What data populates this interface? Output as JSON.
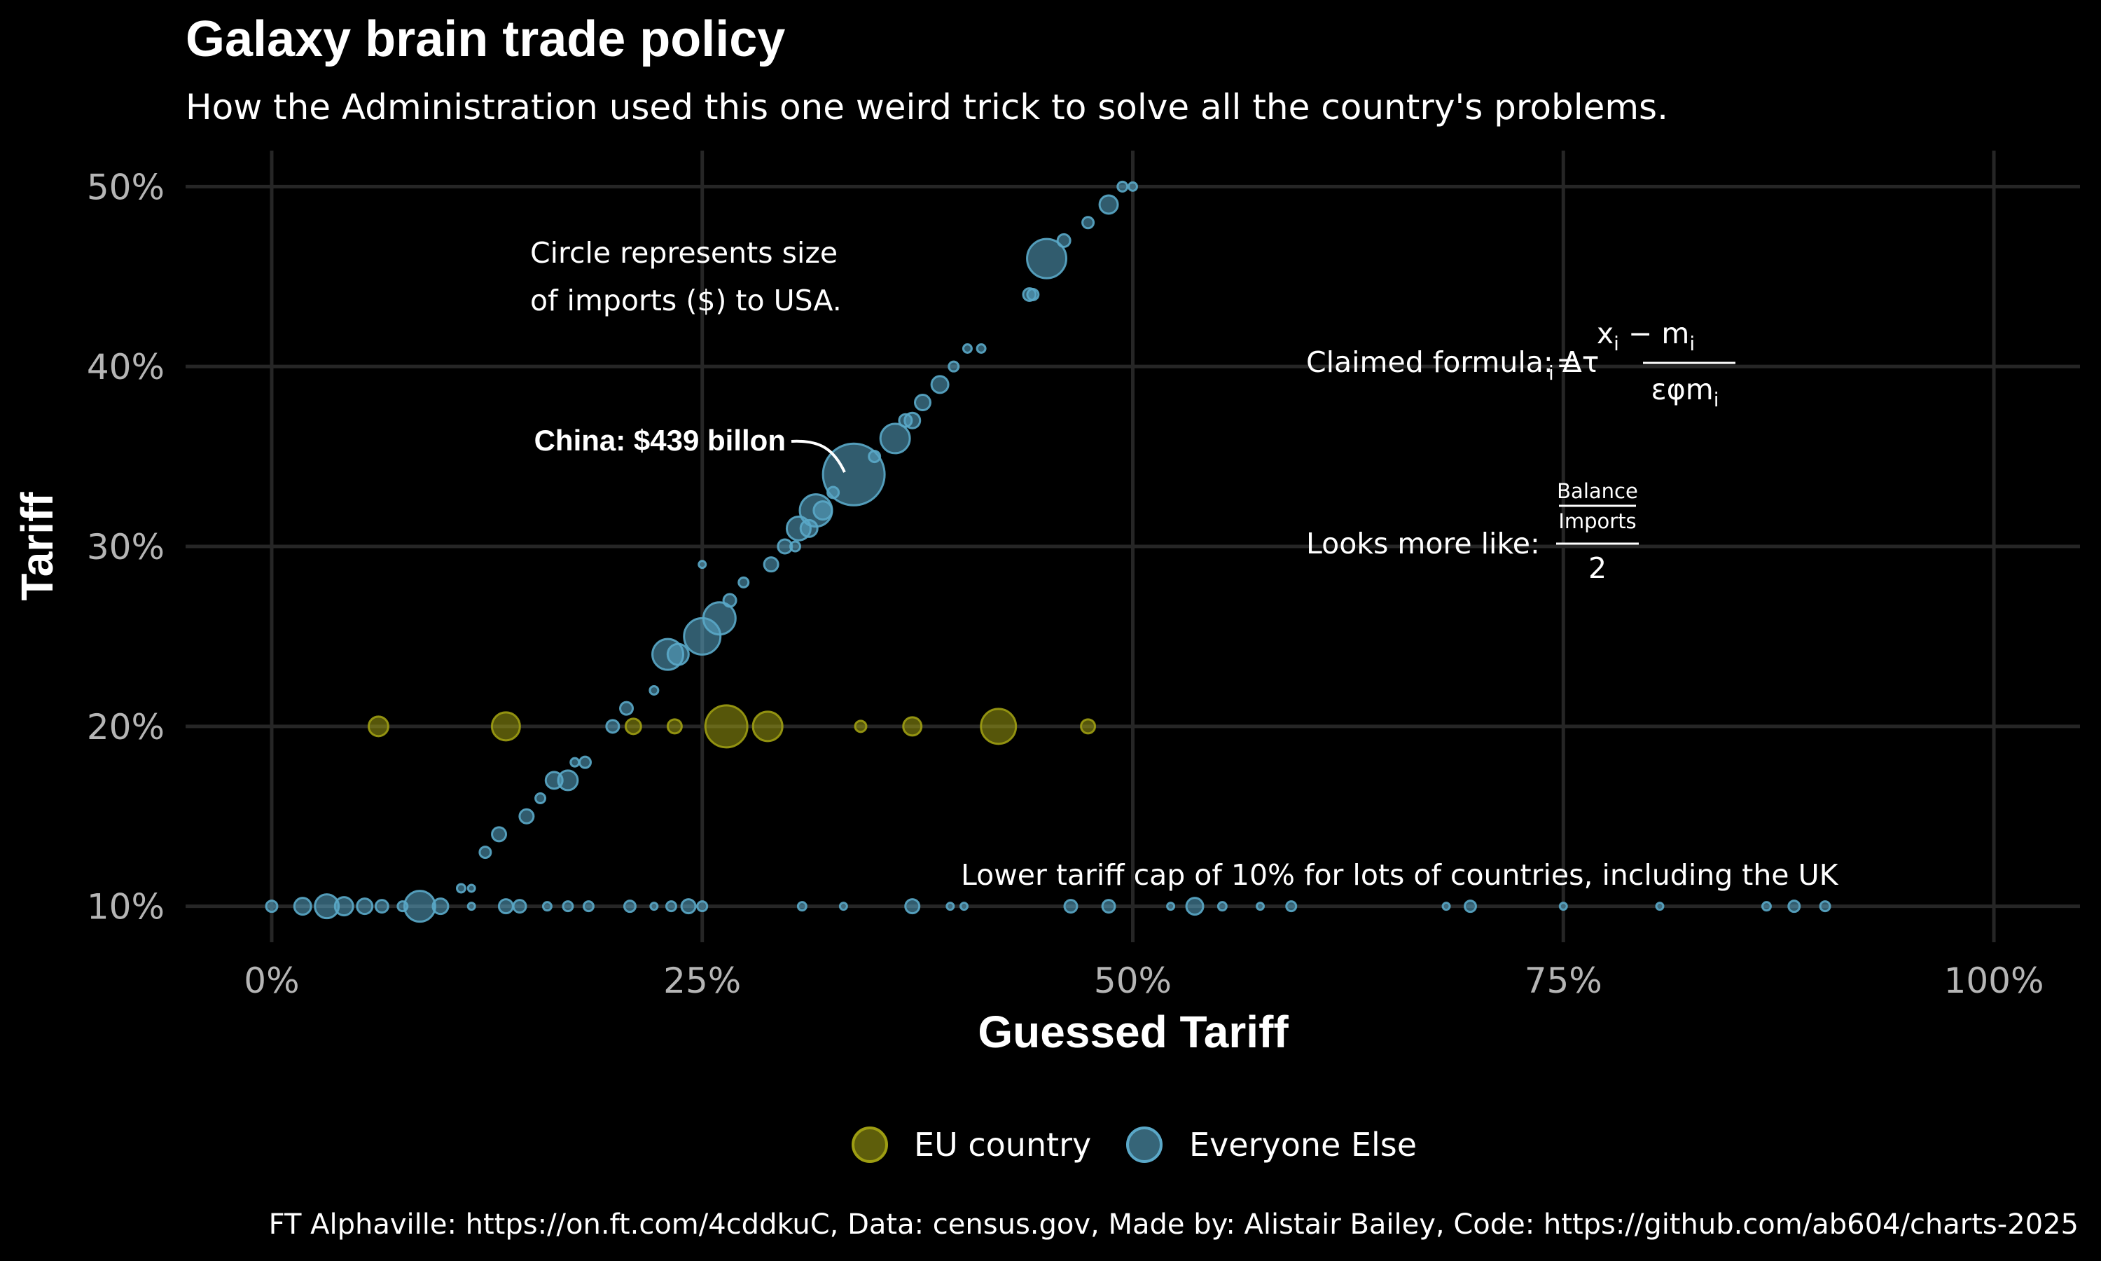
{
  "chart_data": {
    "type": "scatter",
    "title": "Galaxy brain trade policy",
    "subtitle": "How the Administration used this one weird trick to solve all the country's problems.",
    "xlabel": "Guessed Tariff",
    "ylabel": "Tariff",
    "xlim": [
      -5,
      105
    ],
    "ylim": [
      8,
      52
    ],
    "x_ticks": [
      0,
      25,
      50,
      75,
      100
    ],
    "x_tick_labels": [
      "0%",
      "25%",
      "50%",
      "75%",
      "100%"
    ],
    "y_ticks": [
      10,
      20,
      30,
      40,
      50
    ],
    "y_tick_labels": [
      "10%",
      "20%",
      "30%",
      "40%",
      "50%"
    ],
    "grid": true,
    "legend_position": "bottom",
    "legend": [
      {
        "label": "EU country",
        "color": "#9d9d12"
      },
      {
        "label": "Everyone Else",
        "color": "#5aa8c8"
      }
    ],
    "size_note": "Circle represents size of imports ($) to USA.",
    "series": [
      {
        "name": "EU country",
        "color": "#9d9d12",
        "points": [
          {
            "x": 6.2,
            "y": 20,
            "s": 28
          },
          {
            "x": 13.6,
            "y": 20,
            "s": 40
          },
          {
            "x": 21,
            "y": 20,
            "s": 22
          },
          {
            "x": 23.4,
            "y": 20,
            "s": 20
          },
          {
            "x": 26.4,
            "y": 20,
            "s": 60
          },
          {
            "x": 28.8,
            "y": 20,
            "s": 42
          },
          {
            "x": 34.2,
            "y": 20,
            "s": 16
          },
          {
            "x": 37.2,
            "y": 20,
            "s": 26
          },
          {
            "x": 42.2,
            "y": 20,
            "s": 50
          },
          {
            "x": 47.4,
            "y": 20,
            "s": 20
          }
        ]
      },
      {
        "name": "Everyone Else",
        "color": "#5aa8c8",
        "points": [
          {
            "x": 0,
            "y": 10,
            "s": 16
          },
          {
            "x": 1.8,
            "y": 10,
            "s": 24
          },
          {
            "x": 3.2,
            "y": 10,
            "s": 34
          },
          {
            "x": 4.2,
            "y": 10,
            "s": 26
          },
          {
            "x": 5.4,
            "y": 10,
            "s": 22
          },
          {
            "x": 6.4,
            "y": 10,
            "s": 18
          },
          {
            "x": 7.6,
            "y": 10,
            "s": 14
          },
          {
            "x": 8.6,
            "y": 10,
            "s": 44
          },
          {
            "x": 9.8,
            "y": 10,
            "s": 22
          },
          {
            "x": 11.6,
            "y": 10,
            "s": 10
          },
          {
            "x": 13.6,
            "y": 10,
            "s": 20
          },
          {
            "x": 14.4,
            "y": 10,
            "s": 18
          },
          {
            "x": 16,
            "y": 10,
            "s": 12
          },
          {
            "x": 17.2,
            "y": 10,
            "s": 14
          },
          {
            "x": 18.4,
            "y": 10,
            "s": 14
          },
          {
            "x": 20.8,
            "y": 10,
            "s": 16
          },
          {
            "x": 22.2,
            "y": 10,
            "s": 10
          },
          {
            "x": 23.2,
            "y": 10,
            "s": 14
          },
          {
            "x": 24.2,
            "y": 10,
            "s": 20
          },
          {
            "x": 25,
            "y": 10,
            "s": 14
          },
          {
            "x": 30.8,
            "y": 10,
            "s": 12
          },
          {
            "x": 33.2,
            "y": 10,
            "s": 8
          },
          {
            "x": 37.2,
            "y": 10,
            "s": 20
          },
          {
            "x": 39.4,
            "y": 10,
            "s": 10
          },
          {
            "x": 40.2,
            "y": 10,
            "s": 10
          },
          {
            "x": 46.4,
            "y": 10,
            "s": 18
          },
          {
            "x": 48.6,
            "y": 10,
            "s": 18
          },
          {
            "x": 52.2,
            "y": 10,
            "s": 10
          },
          {
            "x": 53.6,
            "y": 10,
            "s": 24
          },
          {
            "x": 55.2,
            "y": 10,
            "s": 12
          },
          {
            "x": 57.4,
            "y": 10,
            "s": 10
          },
          {
            "x": 59.2,
            "y": 10,
            "s": 14
          },
          {
            "x": 68.2,
            "y": 10,
            "s": 10
          },
          {
            "x": 69.6,
            "y": 10,
            "s": 16
          },
          {
            "x": 75,
            "y": 10,
            "s": 10
          },
          {
            "x": 80.6,
            "y": 10,
            "s": 10
          },
          {
            "x": 86.8,
            "y": 10,
            "s": 12
          },
          {
            "x": 88.4,
            "y": 10,
            "s": 16
          },
          {
            "x": 90.2,
            "y": 10,
            "s": 14
          },
          {
            "x": 11,
            "y": 11,
            "s": 12
          },
          {
            "x": 11.6,
            "y": 11,
            "s": 10
          },
          {
            "x": 12.4,
            "y": 13,
            "s": 16
          },
          {
            "x": 13.2,
            "y": 14,
            "s": 20
          },
          {
            "x": 14.8,
            "y": 15,
            "s": 20
          },
          {
            "x": 15.6,
            "y": 16,
            "s": 14
          },
          {
            "x": 16.4,
            "y": 17,
            "s": 24
          },
          {
            "x": 17.2,
            "y": 17,
            "s": 28
          },
          {
            "x": 17.6,
            "y": 18,
            "s": 12
          },
          {
            "x": 18.2,
            "y": 18,
            "s": 16
          },
          {
            "x": 19.8,
            "y": 20,
            "s": 18
          },
          {
            "x": 20.6,
            "y": 21,
            "s": 18
          },
          {
            "x": 22.2,
            "y": 22,
            "s": 12
          },
          {
            "x": 23,
            "y": 24,
            "s": 44
          },
          {
            "x": 23.6,
            "y": 24,
            "s": 30
          },
          {
            "x": 25,
            "y": 25,
            "s": 52
          },
          {
            "x": 26,
            "y": 26,
            "s": 46
          },
          {
            "x": 26.6,
            "y": 27,
            "s": 18
          },
          {
            "x": 27.4,
            "y": 28,
            "s": 14
          },
          {
            "x": 25,
            "y": 29,
            "s": 10
          },
          {
            "x": 29,
            "y": 29,
            "s": 20
          },
          {
            "x": 29.8,
            "y": 30,
            "s": 20
          },
          {
            "x": 30.4,
            "y": 30,
            "s": 14
          },
          {
            "x": 30.6,
            "y": 31,
            "s": 34
          },
          {
            "x": 31.2,
            "y": 31,
            "s": 24
          },
          {
            "x": 31.6,
            "y": 32,
            "s": 46
          },
          {
            "x": 32,
            "y": 32,
            "s": 26
          },
          {
            "x": 32.6,
            "y": 33,
            "s": 16
          },
          {
            "x": 33.8,
            "y": 34,
            "s": 88
          },
          {
            "x": 35,
            "y": 35,
            "s": 16
          },
          {
            "x": 36.2,
            "y": 36,
            "s": 42
          },
          {
            "x": 36.8,
            "y": 37,
            "s": 18
          },
          {
            "x": 37.2,
            "y": 37,
            "s": 22
          },
          {
            "x": 37.8,
            "y": 38,
            "s": 22
          },
          {
            "x": 38.8,
            "y": 39,
            "s": 24
          },
          {
            "x": 39.6,
            "y": 40,
            "s": 14
          },
          {
            "x": 40.4,
            "y": 41,
            "s": 12
          },
          {
            "x": 41.2,
            "y": 41,
            "s": 12
          },
          {
            "x": 44,
            "y": 44,
            "s": 18
          },
          {
            "x": 44.2,
            "y": 44,
            "s": 16
          },
          {
            "x": 45,
            "y": 46,
            "s": 56
          },
          {
            "x": 46,
            "y": 47,
            "s": 18
          },
          {
            "x": 47.4,
            "y": 48,
            "s": 16
          },
          {
            "x": 48.6,
            "y": 49,
            "s": 26
          },
          {
            "x": 49.4,
            "y": 50,
            "s": 14
          },
          {
            "x": 50,
            "y": 50,
            "s": 12
          }
        ]
      }
    ],
    "annotations": {
      "size_note_line1": "Circle represents size",
      "size_note_line2": "of imports ($) to USA.",
      "china_label": "China: $439 billon",
      "claimed_prefix": "Claimed formula: Δτ",
      "claimed_sub_i": "i",
      "claimed_equals": " =",
      "claimed_num": "x",
      "claimed_num_sub": "i",
      "claimed_minus": " − m",
      "claimed_minus_sub": "i",
      "claimed_den": "εφm",
      "claimed_den_sub": "i",
      "looks_prefix": "Looks more like:",
      "looks_balance": "Balance",
      "looks_imports": "Imports",
      "looks_two": "2",
      "lower_cap": "Lower tariff cap of 10% for lots of countries, including the UK"
    }
  },
  "caption": "FT Alphaville: https://on.ft.com/4cddkuC, Data: census.gov, Made by: Alistair Bailey, Code: https://github.com/ab604/charts-2025"
}
